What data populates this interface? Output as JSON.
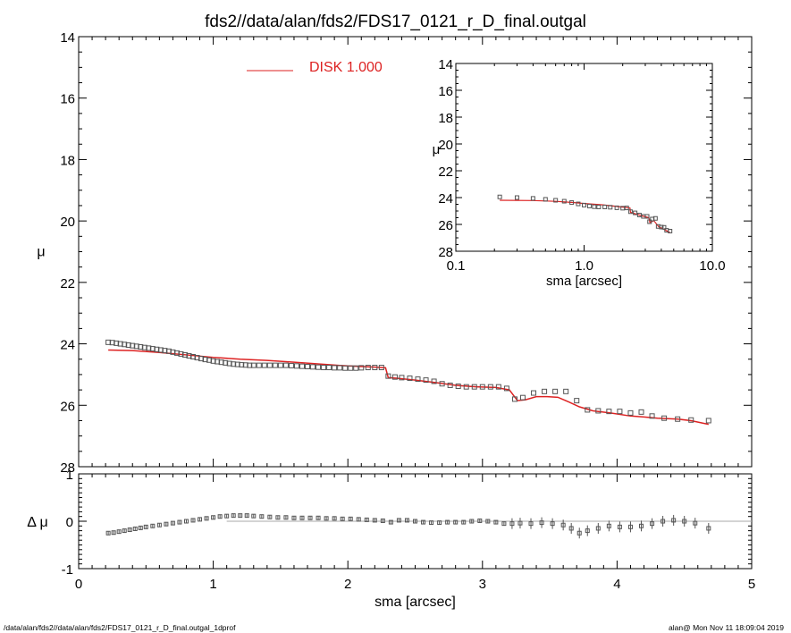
{
  "chart_data": [
    {
      "type": "scatter",
      "panel": "main",
      "title": "fds2//data/alan/fds2/FDS17_0121_r_D_final.outgal",
      "xlabel": "",
      "ylabel": "μ",
      "xlim": [
        0,
        5
      ],
      "ylim": [
        28,
        14
      ],
      "y_reversed": true,
      "yticks": [
        "14",
        "16",
        "18",
        "20",
        "22",
        "24",
        "26",
        "28"
      ],
      "legend": {
        "label": "DISK  1.000",
        "placement": "top-center",
        "color": "#dd2222"
      },
      "series": [
        {
          "kind": "points",
          "marker": "square",
          "color": "#555555",
          "points": [
            [
              0.22,
              23.95
            ],
            [
              0.25,
              23.96
            ],
            [
              0.28,
              23.98
            ],
            [
              0.31,
              24.0
            ],
            [
              0.34,
              24.02
            ],
            [
              0.37,
              24.04
            ],
            [
              0.4,
              24.06
            ],
            [
              0.43,
              24.08
            ],
            [
              0.46,
              24.1
            ],
            [
              0.49,
              24.12
            ],
            [
              0.52,
              24.14
            ],
            [
              0.55,
              24.16
            ],
            [
              0.58,
              24.18
            ],
            [
              0.61,
              24.2
            ],
            [
              0.64,
              24.22
            ],
            [
              0.67,
              24.24
            ],
            [
              0.7,
              24.27
            ],
            [
              0.73,
              24.3
            ],
            [
              0.76,
              24.33
            ],
            [
              0.79,
              24.36
            ],
            [
              0.82,
              24.39
            ],
            [
              0.85,
              24.42
            ],
            [
              0.88,
              24.45
            ],
            [
              0.91,
              24.48
            ],
            [
              0.94,
              24.51
            ],
            [
              0.97,
              24.53
            ],
            [
              1.0,
              24.56
            ],
            [
              1.03,
              24.58
            ],
            [
              1.06,
              24.6
            ],
            [
              1.09,
              24.62
            ],
            [
              1.12,
              24.64
            ],
            [
              1.15,
              24.66
            ],
            [
              1.18,
              24.67
            ],
            [
              1.21,
              24.68
            ],
            [
              1.24,
              24.69
            ],
            [
              1.27,
              24.7
            ],
            [
              1.3,
              24.7
            ],
            [
              1.34,
              24.7
            ],
            [
              1.38,
              24.7
            ],
            [
              1.42,
              24.7
            ],
            [
              1.46,
              24.7
            ],
            [
              1.5,
              24.7
            ],
            [
              1.54,
              24.7
            ],
            [
              1.58,
              24.71
            ],
            [
              1.62,
              24.72
            ],
            [
              1.66,
              24.73
            ],
            [
              1.7,
              24.74
            ],
            [
              1.74,
              24.75
            ],
            [
              1.78,
              24.76
            ],
            [
              1.82,
              24.77
            ],
            [
              1.86,
              24.77
            ],
            [
              1.9,
              24.78
            ],
            [
              1.94,
              24.78
            ],
            [
              1.98,
              24.79
            ],
            [
              2.02,
              24.79
            ],
            [
              2.06,
              24.79
            ],
            [
              2.1,
              24.78
            ],
            [
              2.15,
              24.77
            ],
            [
              2.2,
              24.77
            ],
            [
              2.25,
              24.77
            ],
            [
              2.3,
              25.05
            ],
            [
              2.35,
              25.08
            ],
            [
              2.4,
              25.1
            ],
            [
              2.46,
              25.12
            ],
            [
              2.52,
              25.15
            ],
            [
              2.58,
              25.18
            ],
            [
              2.64,
              25.22
            ],
            [
              2.7,
              25.3
            ],
            [
              2.76,
              25.35
            ],
            [
              2.82,
              25.38
            ],
            [
              2.88,
              25.4
            ],
            [
              2.94,
              25.4
            ],
            [
              3.0,
              25.4
            ],
            [
              3.06,
              25.4
            ],
            [
              3.12,
              25.4
            ],
            [
              3.18,
              25.45
            ],
            [
              3.24,
              25.8
            ],
            [
              3.3,
              25.75
            ],
            [
              3.38,
              25.6
            ],
            [
              3.46,
              25.55
            ],
            [
              3.54,
              25.55
            ],
            [
              3.62,
              25.55
            ],
            [
              3.7,
              25.85
            ],
            [
              3.78,
              26.15
            ],
            [
              3.86,
              26.18
            ],
            [
              3.94,
              26.2
            ],
            [
              4.02,
              26.2
            ],
            [
              4.1,
              26.25
            ],
            [
              4.18,
              26.22
            ],
            [
              4.26,
              26.35
            ],
            [
              4.35,
              26.42
            ],
            [
              4.45,
              26.45
            ],
            [
              4.55,
              26.48
            ],
            [
              4.68,
              26.5
            ]
          ]
        },
        {
          "kind": "line",
          "name": "DISK  1.000",
          "color": "#dd2222",
          "points": [
            [
              0.22,
              24.2
            ],
            [
              0.4,
              24.22
            ],
            [
              0.6,
              24.28
            ],
            [
              0.8,
              24.36
            ],
            [
              1.0,
              24.44
            ],
            [
              1.2,
              24.5
            ],
            [
              1.4,
              24.54
            ],
            [
              1.6,
              24.6
            ],
            [
              1.8,
              24.66
            ],
            [
              2.0,
              24.72
            ],
            [
              2.2,
              24.76
            ],
            [
              2.28,
              24.78
            ],
            [
              2.3,
              25.1
            ],
            [
              2.36,
              25.12
            ],
            [
              2.5,
              25.18
            ],
            [
              2.65,
              25.26
            ],
            [
              2.8,
              25.35
            ],
            [
              2.95,
              25.4
            ],
            [
              3.1,
              25.42
            ],
            [
              3.2,
              25.5
            ],
            [
              3.26,
              25.85
            ],
            [
              3.32,
              25.82
            ],
            [
              3.4,
              25.72
            ],
            [
              3.48,
              25.72
            ],
            [
              3.56,
              25.74
            ],
            [
              3.62,
              25.85
            ],
            [
              3.72,
              26.05
            ],
            [
              3.82,
              26.18
            ],
            [
              3.95,
              26.25
            ],
            [
              4.1,
              26.35
            ],
            [
              4.2,
              26.38
            ],
            [
              4.3,
              26.42
            ],
            [
              4.45,
              26.45
            ],
            [
              4.55,
              26.5
            ],
            [
              4.68,
              26.62
            ]
          ]
        }
      ]
    },
    {
      "type": "scatter",
      "panel": "residual",
      "title": "",
      "xlabel": "sma [arcsec]",
      "ylabel": "Δ μ",
      "xlim": [
        0,
        5
      ],
      "ylim": [
        -1,
        1
      ],
      "xticks": [
        "0",
        "1",
        "2",
        "3",
        "4",
        "5"
      ],
      "yticks": [
        "1",
        "0",
        "-1"
      ],
      "zero_line": {
        "x_from": 1.1,
        "x_to": 5,
        "y": 0,
        "color": "#aaaaaa"
      },
      "series": [
        {
          "kind": "points",
          "marker": "square-with-errorbar",
          "color": "#555555",
          "points": [
            [
              0.22,
              -0.25
            ],
            [
              0.26,
              -0.24
            ],
            [
              0.3,
              -0.22
            ],
            [
              0.34,
              -0.2
            ],
            [
              0.38,
              -0.18
            ],
            [
              0.42,
              -0.16
            ],
            [
              0.46,
              -0.14
            ],
            [
              0.5,
              -0.12
            ],
            [
              0.55,
              -0.1
            ],
            [
              0.6,
              -0.08
            ],
            [
              0.65,
              -0.06
            ],
            [
              0.7,
              -0.04
            ],
            [
              0.75,
              -0.02
            ],
            [
              0.8,
              0.0
            ],
            [
              0.85,
              0.02
            ],
            [
              0.9,
              0.04
            ],
            [
              0.95,
              0.06
            ],
            [
              1.0,
              0.08
            ],
            [
              1.05,
              0.1
            ],
            [
              1.1,
              0.11
            ],
            [
              1.15,
              0.12
            ],
            [
              1.2,
              0.12
            ],
            [
              1.25,
              0.12
            ],
            [
              1.3,
              0.11
            ],
            [
              1.36,
              0.1
            ],
            [
              1.42,
              0.09
            ],
            [
              1.48,
              0.08
            ],
            [
              1.54,
              0.08
            ],
            [
              1.6,
              0.07
            ],
            [
              1.66,
              0.07
            ],
            [
              1.72,
              0.07
            ],
            [
              1.78,
              0.07
            ],
            [
              1.84,
              0.06
            ],
            [
              1.9,
              0.06
            ],
            [
              1.96,
              0.05
            ],
            [
              2.02,
              0.05
            ],
            [
              2.08,
              0.04
            ],
            [
              2.14,
              0.03
            ],
            [
              2.2,
              0.02
            ],
            [
              2.26,
              0.01
            ],
            [
              2.32,
              -0.02
            ],
            [
              2.38,
              0.02
            ],
            [
              2.44,
              0.02
            ],
            [
              2.5,
              0.0
            ],
            [
              2.56,
              -0.02
            ],
            [
              2.62,
              -0.03
            ],
            [
              2.68,
              -0.03
            ],
            [
              2.74,
              -0.02
            ],
            [
              2.8,
              -0.02
            ],
            [
              2.86,
              -0.02
            ],
            [
              2.92,
              0.0
            ],
            [
              2.98,
              0.01
            ],
            [
              3.04,
              0.0
            ],
            [
              3.1,
              -0.02
            ],
            [
              3.16,
              -0.05
            ],
            [
              3.22,
              -0.05
            ],
            [
              3.28,
              -0.04
            ],
            [
              3.36,
              -0.05
            ],
            [
              3.44,
              -0.03
            ],
            [
              3.52,
              -0.05
            ],
            [
              3.6,
              -0.08
            ],
            [
              3.66,
              -0.15
            ],
            [
              3.72,
              -0.25
            ],
            [
              3.78,
              -0.2
            ],
            [
              3.86,
              -0.15
            ],
            [
              3.94,
              -0.1
            ],
            [
              4.02,
              -0.12
            ],
            [
              4.1,
              -0.12
            ],
            [
              4.18,
              -0.1
            ],
            [
              4.26,
              -0.05
            ],
            [
              4.34,
              0.0
            ],
            [
              4.42,
              0.02
            ],
            [
              4.5,
              0.0
            ],
            [
              4.58,
              -0.04
            ],
            [
              4.68,
              -0.15
            ]
          ]
        }
      ]
    },
    {
      "type": "scatter",
      "panel": "inset",
      "title": "",
      "xlabel": "sma [arcsec]",
      "ylabel": "μ",
      "x_scale": "log",
      "xlim": [
        0.1,
        10.0
      ],
      "ylim": [
        28,
        14
      ],
      "y_reversed": true,
      "xticks": [
        "0.1",
        "1.0",
        "10.0"
      ],
      "yticks": [
        "14",
        "16",
        "18",
        "20",
        "22",
        "24",
        "26",
        "28"
      ],
      "series": [
        {
          "kind": "points",
          "marker": "square",
          "color": "#555555",
          "points": [
            [
              0.22,
              23.95
            ],
            [
              0.3,
              24.0
            ],
            [
              0.4,
              24.06
            ],
            [
              0.5,
              24.13
            ],
            [
              0.6,
              24.2
            ],
            [
              0.7,
              24.27
            ],
            [
              0.8,
              24.37
            ],
            [
              0.9,
              24.47
            ],
            [
              1.0,
              24.56
            ],
            [
              1.1,
              24.63
            ],
            [
              1.2,
              24.68
            ],
            [
              1.3,
              24.7
            ],
            [
              1.45,
              24.7
            ],
            [
              1.6,
              24.72
            ],
            [
              1.8,
              24.76
            ],
            [
              2.0,
              24.79
            ],
            [
              2.15,
              24.77
            ],
            [
              2.3,
              25.05
            ],
            [
              2.5,
              25.14
            ],
            [
              2.7,
              25.3
            ],
            [
              2.9,
              25.4
            ],
            [
              3.1,
              25.4
            ],
            [
              3.24,
              25.8
            ],
            [
              3.4,
              25.6
            ],
            [
              3.6,
              25.55
            ],
            [
              3.78,
              26.15
            ],
            [
              4.0,
              26.2
            ],
            [
              4.2,
              26.22
            ],
            [
              4.4,
              26.44
            ],
            [
              4.68,
              26.5
            ]
          ]
        },
        {
          "kind": "line",
          "color": "#dd2222",
          "points": [
            [
              0.22,
              24.2
            ],
            [
              0.4,
              24.22
            ],
            [
              0.6,
              24.28
            ],
            [
              0.8,
              24.36
            ],
            [
              1.0,
              24.44
            ],
            [
              1.4,
              24.54
            ],
            [
              1.8,
              24.66
            ],
            [
              2.28,
              24.78
            ],
            [
              2.3,
              25.1
            ],
            [
              2.8,
              25.35
            ],
            [
              3.2,
              25.5
            ],
            [
              3.26,
              25.85
            ],
            [
              3.5,
              25.72
            ],
            [
              3.82,
              26.18
            ],
            [
              4.3,
              26.42
            ],
            [
              4.68,
              26.62
            ]
          ]
        }
      ]
    }
  ],
  "footer": {
    "left": "/data/alan/fds2//data/alan/fds2/FDS17_0121_r_D_final.outgal_1dprof",
    "right": "alan@  Mon Nov 11 18:09:04 2019"
  },
  "colors": {
    "points": "#555555",
    "model": "#dd2222",
    "zero_line": "#aaaaaa",
    "axes": "#000000"
  }
}
